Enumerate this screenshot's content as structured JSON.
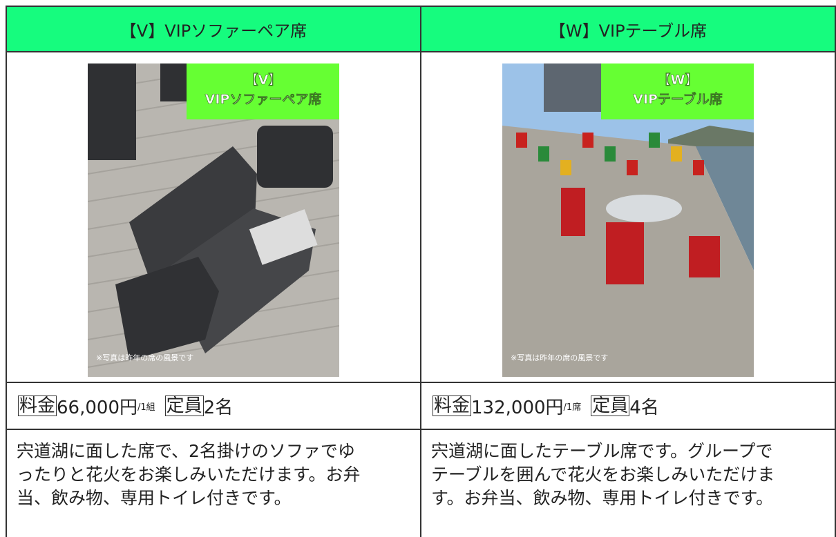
{
  "columns": [
    {
      "title": "【V】VIPソファーペア席",
      "image": {
        "overlay": [
          "【V】",
          "VIPソファーペア席"
        ],
        "caption": "※写真は昨年の席の風景です"
      },
      "price": {
        "label": "料金",
        "amount": "66,000円",
        "unit": "/1組"
      },
      "capacity": {
        "label": "定員",
        "amount": "2名"
      },
      "description": [
        "宍道湖に面した席で、2名掛けのソファでゆ",
        "ったりと花火をお楽しみいただけます。お弁",
        "当、飲み物、専用トイレ付きです。"
      ]
    },
    {
      "title": "【W】VIPテーブル席",
      "image": {
        "overlay": [
          "【W】",
          "VIPテーブル席"
        ],
        "caption": "※写真は昨年の席の風景です"
      },
      "price": {
        "label": "料金",
        "amount": "132,000円",
        "unit": "/1席"
      },
      "capacity": {
        "label": "定員",
        "amount": "4名"
      },
      "description": [
        "宍道湖に面したテーブル席です。グループで",
        "テーブルを囲んで花火をお楽しみいただけま",
        "す。お弁当、飲み物、専用トイレ付きです。"
      ]
    }
  ]
}
